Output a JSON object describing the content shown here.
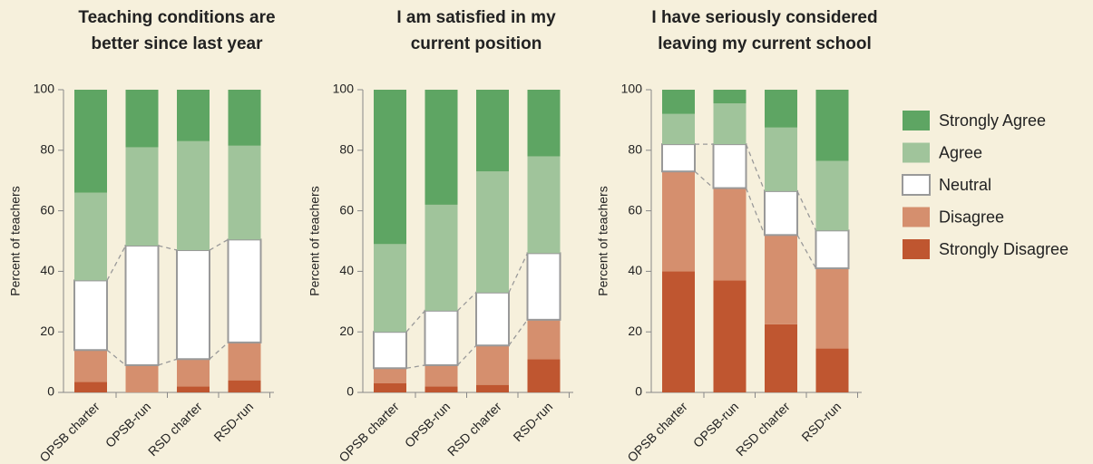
{
  "chart_data": [
    {
      "type": "bar",
      "stacked": true,
      "title": [
        "Teaching conditions are",
        "better since last year"
      ],
      "ylabel": "Percent of teachers",
      "categories": [
        "OPSB charter",
        "OPSB-run",
        "RSD charter",
        "RSD-run"
      ],
      "ylim": [
        0,
        100
      ],
      "yticks": [
        0,
        20,
        40,
        60,
        80,
        100
      ],
      "legend": "right",
      "series": [
        {
          "name": "Strongly Disagree",
          "color": "#bf5630",
          "values": [
            3.5,
            0,
            2,
            4
          ]
        },
        {
          "name": "Disagree",
          "color": "#d58f6e",
          "values": [
            10.5,
            9,
            9,
            12.5
          ]
        },
        {
          "name": "Neutral",
          "color": "#ffffff",
          "values": [
            23,
            39.5,
            36,
            34
          ]
        },
        {
          "name": "Agree",
          "color": "#a0c49b",
          "values": [
            29,
            32.5,
            36,
            31
          ]
        },
        {
          "name": "Strongly Agree",
          "color": "#5ea563",
          "values": [
            34,
            19,
            17,
            18.5
          ]
        }
      ]
    },
    {
      "type": "bar",
      "stacked": true,
      "title": [
        "I am satisfied in my",
        "current position"
      ],
      "ylabel": "Percent of teachers",
      "categories": [
        "OPSB charter",
        "OPSB-run",
        "RSD charter",
        "RSD-run"
      ],
      "ylim": [
        0,
        100
      ],
      "yticks": [
        0,
        20,
        40,
        60,
        80,
        100
      ],
      "series": [
        {
          "name": "Strongly Disagree",
          "color": "#bf5630",
          "values": [
            3,
            2,
            2.5,
            11
          ]
        },
        {
          "name": "Disagree",
          "color": "#d58f6e",
          "values": [
            5,
            7,
            13,
            13
          ]
        },
        {
          "name": "Neutral",
          "color": "#ffffff",
          "values": [
            12,
            18,
            17.5,
            22
          ]
        },
        {
          "name": "Agree",
          "color": "#a0c49b",
          "values": [
            29,
            35,
            40,
            32
          ]
        },
        {
          "name": "Strongly Agree",
          "color": "#5ea563",
          "values": [
            51,
            38,
            27,
            22
          ]
        }
      ]
    },
    {
      "type": "bar",
      "stacked": true,
      "title": [
        "I have seriously considered",
        "leaving my current school"
      ],
      "ylabel": "Percent of teachers",
      "categories": [
        "OPSB charter",
        "OPSB-run",
        "RSD charter",
        "RSD-run"
      ],
      "ylim": [
        0,
        100
      ],
      "yticks": [
        0,
        20,
        40,
        60,
        80,
        100
      ],
      "series": [
        {
          "name": "Strongly Disagree",
          "color": "#bf5630",
          "values": [
            40,
            37,
            22.5,
            14.5
          ]
        },
        {
          "name": "Disagree",
          "color": "#d58f6e",
          "values": [
            33,
            30.5,
            29.5,
            26.5
          ]
        },
        {
          "name": "Neutral",
          "color": "#ffffff",
          "values": [
            9,
            14.5,
            14.5,
            12.5
          ]
        },
        {
          "name": "Agree",
          "color": "#a0c49b",
          "values": [
            10,
            13.5,
            21,
            23
          ]
        },
        {
          "name": "Strongly Agree",
          "color": "#5ea563",
          "values": [
            8,
            4.5,
            12.5,
            23.5
          ]
        }
      ]
    }
  ]
}
